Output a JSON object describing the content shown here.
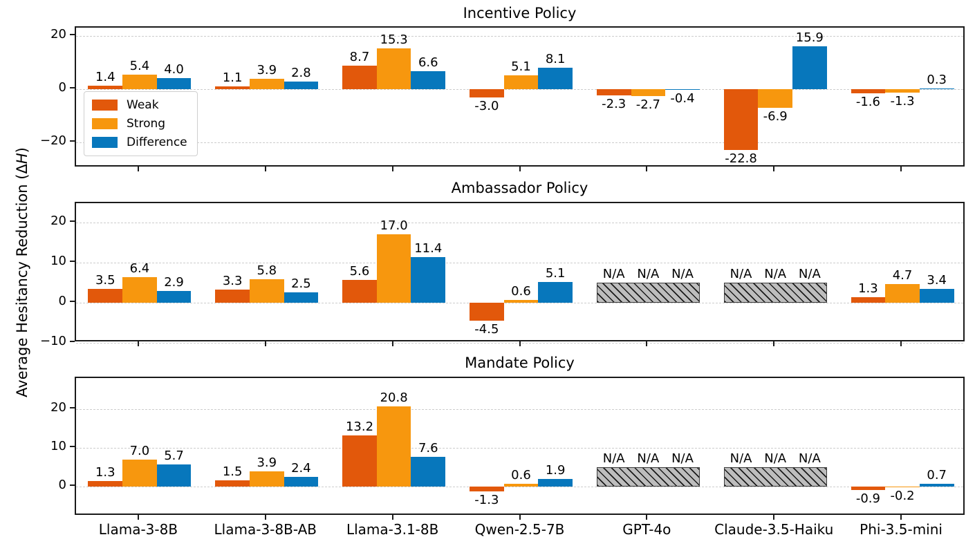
{
  "figure": {
    "ylabel_prefix": "Average Hesitancy Reduction (Δ",
    "ylabel_italic": "H",
    "ylabel_suffix": ")"
  },
  "colors": {
    "weak": "#E2580B",
    "strong": "#F7970E",
    "difference": "#0777BC",
    "na_fill": "#BDBDBD",
    "na_hatch": "#1A1A1A",
    "grid": "#CCCCCC",
    "axis": "#1A1A1A",
    "background": "#FFFFFF"
  },
  "legend": {
    "items": [
      {
        "label": "Weak",
        "color": "#E2580B"
      },
      {
        "label": "Strong",
        "color": "#F7970E"
      },
      {
        "label": "Difference",
        "color": "#0777BC"
      }
    ]
  },
  "na_label": "N/A",
  "chart_data": [
    {
      "type": "bar",
      "title": "Incentive Policy",
      "categories": [
        "Llama-3-8B",
        "Llama-3-8B-AB",
        "Llama-3.1-8B",
        "Qwen-2.5-7B",
        "GPT-4o",
        "Claude-3.5-Haiku",
        "Phi-3.5-mini"
      ],
      "series": [
        {
          "name": "Weak",
          "values": [
            1.4,
            1.1,
            8.7,
            -3.0,
            -2.3,
            -22.8,
            -1.6
          ]
        },
        {
          "name": "Strong",
          "values": [
            5.4,
            3.9,
            15.3,
            5.1,
            -2.7,
            -6.9,
            -1.3
          ]
        },
        {
          "name": "Difference",
          "values": [
            4.0,
            2.8,
            6.6,
            8.1,
            -0.4,
            15.9,
            0.3
          ]
        }
      ],
      "na_categories": [],
      "yticks": [
        20,
        0,
        -20
      ],
      "ylim": [
        -29.5,
        23
      ],
      "na_block_value": 5,
      "grid": "horizontal-dashed",
      "legend_position": "upper-left"
    },
    {
      "type": "bar",
      "title": "Ambassador Policy",
      "categories": [
        "Llama-3-8B",
        "Llama-3-8B-AB",
        "Llama-3.1-8B",
        "Qwen-2.5-7B",
        "GPT-4o",
        "Claude-3.5-Haiku",
        "Phi-3.5-mini"
      ],
      "series": [
        {
          "name": "Weak",
          "values": [
            3.5,
            3.3,
            5.6,
            -4.5,
            null,
            null,
            1.3
          ]
        },
        {
          "name": "Strong",
          "values": [
            6.4,
            5.8,
            17.0,
            0.6,
            null,
            null,
            4.7
          ]
        },
        {
          "name": "Difference",
          "values": [
            2.9,
            2.5,
            11.4,
            5.1,
            null,
            null,
            3.4
          ]
        }
      ],
      "na_categories": [
        "GPT-4o",
        "Claude-3.5-Haiku"
      ],
      "yticks": [
        20,
        10,
        0,
        -10
      ],
      "ylim": [
        -10,
        24.8
      ],
      "na_block_value": 5,
      "grid": "horizontal-dashed",
      "legend_position": "none"
    },
    {
      "type": "bar",
      "title": "Mandate Policy",
      "categories": [
        "Llama-3-8B",
        "Llama-3-8B-AB",
        "Llama-3.1-8B",
        "Qwen-2.5-7B",
        "GPT-4o",
        "Claude-3.5-Haiku",
        "Phi-3.5-mini"
      ],
      "series": [
        {
          "name": "Weak",
          "values": [
            1.3,
            1.5,
            13.2,
            -1.3,
            null,
            null,
            -0.9
          ]
        },
        {
          "name": "Strong",
          "values": [
            7.0,
            3.9,
            20.8,
            0.6,
            null,
            null,
            -0.2
          ]
        },
        {
          "name": "Difference",
          "values": [
            5.7,
            2.4,
            7.6,
            1.9,
            null,
            null,
            0.7
          ]
        }
      ],
      "na_categories": [
        "GPT-4o",
        "Claude-3.5-Haiku"
      ],
      "yticks": [
        20,
        10,
        0
      ],
      "ylim": [
        -7.8,
        28.1
      ],
      "na_block_value": 5,
      "grid": "horizontal-dashed",
      "legend_position": "none"
    }
  ]
}
